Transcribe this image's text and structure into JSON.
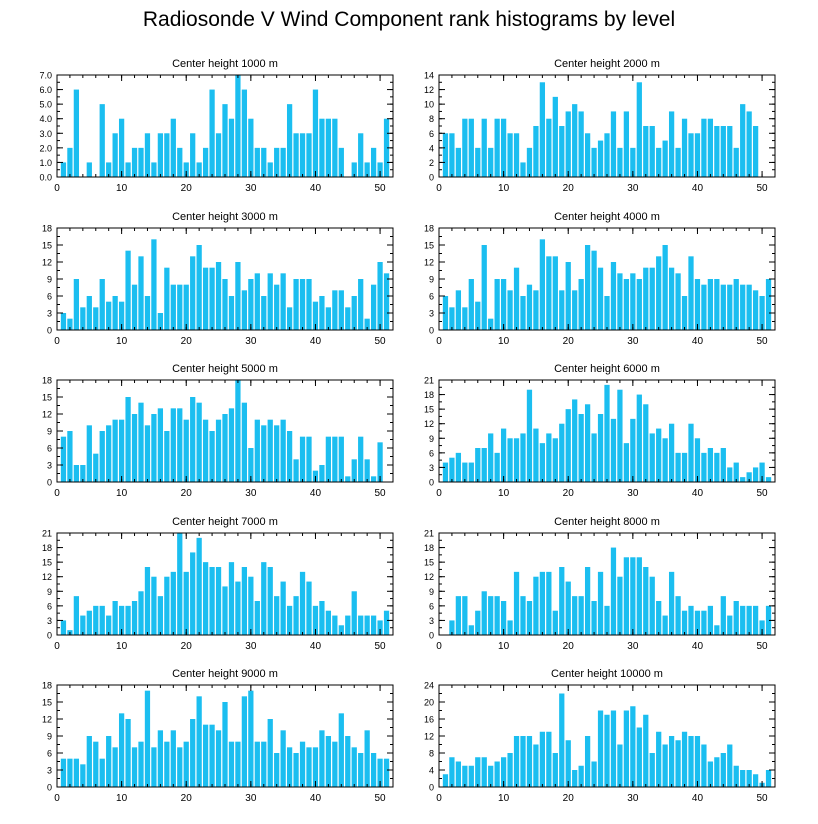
{
  "figure_title": "Radiosonde V Wind Component rank histograms by level",
  "bar_color": "#1bbef0",
  "chart_data": [
    {
      "type": "bar",
      "title": "Center height 1000 m",
      "xlim": [
        0,
        52
      ],
      "ylim": [
        0,
        7
      ],
      "xticks": [
        0,
        10,
        20,
        30,
        40,
        50
      ],
      "yticks": [
        0,
        1,
        2,
        3,
        4,
        5,
        6,
        7
      ],
      "ytick_labels": [
        "0.0",
        "1.0",
        "2.0",
        "3.0",
        "4.0",
        "5.0",
        "6.0",
        "7.0"
      ],
      "x": [
        1,
        2,
        3,
        4,
        5,
        6,
        7,
        8,
        9,
        10,
        11,
        12,
        13,
        14,
        15,
        16,
        17,
        18,
        19,
        20,
        21,
        22,
        23,
        24,
        25,
        26,
        27,
        28,
        29,
        30,
        31,
        32,
        33,
        34,
        35,
        36,
        37,
        38,
        39,
        40,
        41,
        42,
        43,
        44,
        45,
        46,
        47,
        48,
        49,
        50,
        51
      ],
      "values": [
        1,
        2,
        6,
        0,
        1,
        0,
        5,
        1,
        3,
        4,
        1,
        2,
        2,
        3,
        1,
        3,
        3,
        4,
        2,
        1,
        3,
        1,
        2,
        6,
        3,
        5,
        4,
        7,
        6,
        4,
        2,
        2,
        1,
        2,
        2,
        5,
        3,
        3,
        3,
        6,
        4,
        4,
        4,
        2,
        0,
        1,
        3,
        1,
        2,
        1,
        4
      ]
    },
    {
      "type": "bar",
      "title": "Center height 2000 m",
      "xlim": [
        0,
        52
      ],
      "ylim": [
        0,
        14
      ],
      "xticks": [
        0,
        10,
        20,
        30,
        40,
        50
      ],
      "yticks": [
        0,
        2,
        4,
        6,
        8,
        10,
        12,
        14
      ],
      "ytick_labels": [
        "0",
        "2",
        "4",
        "6",
        "8",
        "10",
        "12",
        "14"
      ],
      "x": [
        1,
        2,
        3,
        4,
        5,
        6,
        7,
        8,
        9,
        10,
        11,
        12,
        13,
        14,
        15,
        16,
        17,
        18,
        19,
        20,
        21,
        22,
        23,
        24,
        25,
        26,
        27,
        28,
        29,
        30,
        31,
        32,
        33,
        34,
        35,
        36,
        37,
        38,
        39,
        40,
        41,
        42,
        43,
        44,
        45,
        46,
        47,
        48,
        49,
        50,
        51
      ],
      "values": [
        6,
        6,
        4,
        8,
        8,
        4,
        8,
        4,
        8,
        8,
        6,
        6,
        2,
        4,
        7,
        13,
        8,
        11,
        7,
        9,
        10,
        9,
        6,
        4,
        5,
        6,
        9,
        4,
        9,
        4,
        13,
        7,
        7,
        4,
        5,
        9,
        4,
        8,
        6,
        6,
        8,
        8,
        7,
        7,
        7,
        4,
        10,
        9,
        7,
        0,
        0
      ]
    },
    {
      "type": "bar",
      "title": "Center height 3000 m",
      "xlim": [
        0,
        52
      ],
      "ylim": [
        0,
        18
      ],
      "xticks": [
        0,
        10,
        20,
        30,
        40,
        50
      ],
      "yticks": [
        0,
        3,
        6,
        9,
        12,
        15,
        18
      ],
      "ytick_labels": [
        "0",
        "3",
        "6",
        "9",
        "12",
        "15",
        "18"
      ],
      "x": [
        1,
        2,
        3,
        4,
        5,
        6,
        7,
        8,
        9,
        10,
        11,
        12,
        13,
        14,
        15,
        16,
        17,
        18,
        19,
        20,
        21,
        22,
        23,
        24,
        25,
        26,
        27,
        28,
        29,
        30,
        31,
        32,
        33,
        34,
        35,
        36,
        37,
        38,
        39,
        40,
        41,
        42,
        43,
        44,
        45,
        46,
        47,
        48,
        49,
        50,
        51
      ],
      "values": [
        3,
        2,
        9,
        4,
        6,
        4,
        9,
        5,
        6,
        5,
        14,
        8,
        13,
        6,
        16,
        3,
        11,
        8,
        8,
        8,
        13,
        15,
        11,
        11,
        12,
        9,
        6,
        12,
        7,
        9,
        10,
        6,
        10,
        8,
        10,
        4,
        9,
        9,
        9,
        5,
        6,
        4,
        7,
        7,
        4,
        6,
        9,
        2,
        8,
        12,
        10
      ]
    },
    {
      "type": "bar",
      "title": "Center height 4000 m",
      "xlim": [
        0,
        52
      ],
      "ylim": [
        0,
        18
      ],
      "xticks": [
        0,
        10,
        20,
        30,
        40,
        50
      ],
      "yticks": [
        0,
        3,
        6,
        9,
        12,
        15,
        18
      ],
      "ytick_labels": [
        "0",
        "3",
        "6",
        "9",
        "12",
        "15",
        "18"
      ],
      "x": [
        1,
        2,
        3,
        4,
        5,
        6,
        7,
        8,
        9,
        10,
        11,
        12,
        13,
        14,
        15,
        16,
        17,
        18,
        19,
        20,
        21,
        22,
        23,
        24,
        25,
        26,
        27,
        28,
        29,
        30,
        31,
        32,
        33,
        34,
        35,
        36,
        37,
        38,
        39,
        40,
        41,
        42,
        43,
        44,
        45,
        46,
        47,
        48,
        49,
        50,
        51
      ],
      "values": [
        6,
        4,
        7,
        4,
        9,
        5,
        15,
        2,
        9,
        9,
        7,
        11,
        6,
        8,
        7,
        16,
        13,
        13,
        7,
        12,
        7,
        9,
        15,
        14,
        11,
        6,
        12,
        10,
        9,
        10,
        9,
        11,
        11,
        13,
        15,
        11,
        10,
        6,
        13,
        9,
        8,
        9,
        9,
        8,
        8,
        9,
        8,
        8,
        7,
        6,
        9
      ]
    },
    {
      "type": "bar",
      "title": "Center height 5000 m",
      "xlim": [
        0,
        52
      ],
      "ylim": [
        0,
        18
      ],
      "xticks": [
        0,
        10,
        20,
        30,
        40,
        50
      ],
      "yticks": [
        0,
        3,
        6,
        9,
        12,
        15,
        18
      ],
      "ytick_labels": [
        "0",
        "3",
        "6",
        "9",
        "12",
        "15",
        "18"
      ],
      "x": [
        1,
        2,
        3,
        4,
        5,
        6,
        7,
        8,
        9,
        10,
        11,
        12,
        13,
        14,
        15,
        16,
        17,
        18,
        19,
        20,
        21,
        22,
        23,
        24,
        25,
        26,
        27,
        28,
        29,
        30,
        31,
        32,
        33,
        34,
        35,
        36,
        37,
        38,
        39,
        40,
        41,
        42,
        43,
        44,
        45,
        46,
        47,
        48,
        49,
        50,
        51
      ],
      "values": [
        8,
        9,
        3,
        3,
        10,
        5,
        9,
        10,
        11,
        11,
        15,
        12,
        14,
        10,
        12,
        13,
        9,
        13,
        13,
        11,
        15,
        14,
        11,
        9,
        11,
        12,
        13,
        18,
        14,
        6,
        11,
        10,
        11,
        10,
        11,
        9,
        4,
        8,
        8,
        2,
        3,
        8,
        8,
        8,
        1,
        4,
        8,
        4,
        1,
        7,
        0
      ]
    },
    {
      "type": "bar",
      "title": "Center height 6000 m",
      "xlim": [
        0,
        52
      ],
      "ylim": [
        0,
        21
      ],
      "xticks": [
        0,
        10,
        20,
        30,
        40,
        50
      ],
      "yticks": [
        0,
        3,
        6,
        9,
        12,
        15,
        18,
        21
      ],
      "ytick_labels": [
        "0",
        "3",
        "6",
        "9",
        "12",
        "15",
        "18",
        "21"
      ],
      "x": [
        1,
        2,
        3,
        4,
        5,
        6,
        7,
        8,
        9,
        10,
        11,
        12,
        13,
        14,
        15,
        16,
        17,
        18,
        19,
        20,
        21,
        22,
        23,
        24,
        25,
        26,
        27,
        28,
        29,
        30,
        31,
        32,
        33,
        34,
        35,
        36,
        37,
        38,
        39,
        40,
        41,
        42,
        43,
        44,
        45,
        46,
        47,
        48,
        49,
        50,
        51
      ],
      "values": [
        4,
        5,
        6,
        4,
        4,
        7,
        7,
        10,
        6,
        11,
        9,
        9,
        10,
        19,
        11,
        8,
        10,
        9,
        12,
        15,
        17,
        14,
        16,
        10,
        14,
        20,
        13,
        19,
        8,
        13,
        18,
        16,
        10,
        11,
        9,
        12,
        6,
        6,
        12,
        9,
        6,
        7,
        6,
        7,
        3,
        4,
        1,
        2,
        3,
        4,
        1
      ]
    },
    {
      "type": "bar",
      "title": "Center height 7000 m",
      "xlim": [
        0,
        52
      ],
      "ylim": [
        0,
        21
      ],
      "xticks": [
        0,
        10,
        20,
        30,
        40,
        50
      ],
      "yticks": [
        0,
        3,
        6,
        9,
        12,
        15,
        18,
        21
      ],
      "ytick_labels": [
        "0",
        "3",
        "6",
        "9",
        "12",
        "15",
        "18",
        "21"
      ],
      "x": [
        1,
        2,
        3,
        4,
        5,
        6,
        7,
        8,
        9,
        10,
        11,
        12,
        13,
        14,
        15,
        16,
        17,
        18,
        19,
        20,
        21,
        22,
        23,
        24,
        25,
        26,
        27,
        28,
        29,
        30,
        31,
        32,
        33,
        34,
        35,
        36,
        37,
        38,
        39,
        40,
        41,
        42,
        43,
        44,
        45,
        46,
        47,
        48,
        49,
        50,
        51
      ],
      "values": [
        3,
        1,
        8,
        4,
        5,
        6,
        6,
        4,
        7,
        6,
        6,
        7,
        9,
        14,
        12,
        8,
        12,
        13,
        21,
        13,
        17,
        20,
        15,
        14,
        14,
        10,
        15,
        11,
        14,
        12,
        7,
        15,
        14,
        8,
        11,
        6,
        8,
        13,
        11,
        6,
        7,
        5,
        4,
        2,
        4,
        9,
        4,
        4,
        4,
        3,
        5
      ]
    },
    {
      "type": "bar",
      "title": "Center height 8000 m",
      "xlim": [
        0,
        52
      ],
      "ylim": [
        0,
        21
      ],
      "xticks": [
        0,
        10,
        20,
        30,
        40,
        50
      ],
      "yticks": [
        0,
        3,
        6,
        9,
        12,
        15,
        18,
        21
      ],
      "ytick_labels": [
        "0",
        "3",
        "6",
        "9",
        "12",
        "15",
        "18",
        "21"
      ],
      "x": [
        1,
        2,
        3,
        4,
        5,
        6,
        7,
        8,
        9,
        10,
        11,
        12,
        13,
        14,
        15,
        16,
        17,
        18,
        19,
        20,
        21,
        22,
        23,
        24,
        25,
        26,
        27,
        28,
        29,
        30,
        31,
        32,
        33,
        34,
        35,
        36,
        37,
        38,
        39,
        40,
        41,
        42,
        43,
        44,
        45,
        46,
        47,
        48,
        49,
        50,
        51
      ],
      "values": [
        0,
        3,
        8,
        8,
        2,
        5,
        9,
        8,
        8,
        7,
        3,
        13,
        8,
        7,
        12,
        13,
        13,
        5,
        14,
        11,
        8,
        8,
        14,
        7,
        13,
        6,
        18,
        12,
        16,
        16,
        16,
        14,
        12,
        7,
        4,
        13,
        8,
        5,
        6,
        5,
        5,
        6,
        2,
        8,
        4,
        7,
        6,
        6,
        6,
        3,
        6
      ]
    },
    {
      "type": "bar",
      "title": "Center height 9000 m",
      "xlim": [
        0,
        52
      ],
      "ylim": [
        0,
        18
      ],
      "xticks": [
        0,
        10,
        20,
        30,
        40,
        50
      ],
      "yticks": [
        0,
        3,
        6,
        9,
        12,
        15,
        18
      ],
      "ytick_labels": [
        "0",
        "3",
        "6",
        "9",
        "12",
        "15",
        "18"
      ],
      "x": [
        1,
        2,
        3,
        4,
        5,
        6,
        7,
        8,
        9,
        10,
        11,
        12,
        13,
        14,
        15,
        16,
        17,
        18,
        19,
        20,
        21,
        22,
        23,
        24,
        25,
        26,
        27,
        28,
        29,
        30,
        31,
        32,
        33,
        34,
        35,
        36,
        37,
        38,
        39,
        40,
        41,
        42,
        43,
        44,
        45,
        46,
        47,
        48,
        49,
        50,
        51
      ],
      "values": [
        5,
        5,
        5,
        4,
        9,
        8,
        5,
        9,
        7,
        13,
        12,
        7,
        8,
        17,
        7,
        10,
        8,
        10,
        7,
        8,
        12,
        16,
        11,
        11,
        10,
        15,
        8,
        8,
        16,
        17,
        8,
        8,
        12,
        6,
        10,
        7,
        6,
        8,
        7,
        7,
        10,
        9,
        8,
        13,
        9,
        7,
        6,
        10,
        6,
        5,
        5
      ]
    },
    {
      "type": "bar",
      "title": "Center height 10000 m",
      "xlim": [
        0,
        52
      ],
      "ylim": [
        0,
        24
      ],
      "xticks": [
        0,
        10,
        20,
        30,
        40,
        50
      ],
      "yticks": [
        0,
        4,
        8,
        12,
        16,
        20,
        24
      ],
      "ytick_labels": [
        "0",
        "4",
        "8",
        "12",
        "16",
        "20",
        "24"
      ],
      "x": [
        1,
        2,
        3,
        4,
        5,
        6,
        7,
        8,
        9,
        10,
        11,
        12,
        13,
        14,
        15,
        16,
        17,
        18,
        19,
        20,
        21,
        22,
        23,
        24,
        25,
        26,
        27,
        28,
        29,
        30,
        31,
        32,
        33,
        34,
        35,
        36,
        37,
        38,
        39,
        40,
        41,
        42,
        43,
        44,
        45,
        46,
        47,
        48,
        49,
        50,
        51
      ],
      "values": [
        3,
        7,
        6,
        5,
        5,
        7,
        7,
        5,
        6,
        7,
        8,
        12,
        12,
        12,
        10,
        13,
        13,
        8,
        22,
        11,
        4,
        5,
        12,
        6,
        18,
        17,
        18,
        10,
        18,
        19,
        14,
        17,
        8,
        13,
        10,
        12,
        11,
        13,
        12,
        12,
        10,
        6,
        7,
        8,
        10,
        5,
        4,
        4,
        3,
        1,
        4
      ]
    }
  ]
}
